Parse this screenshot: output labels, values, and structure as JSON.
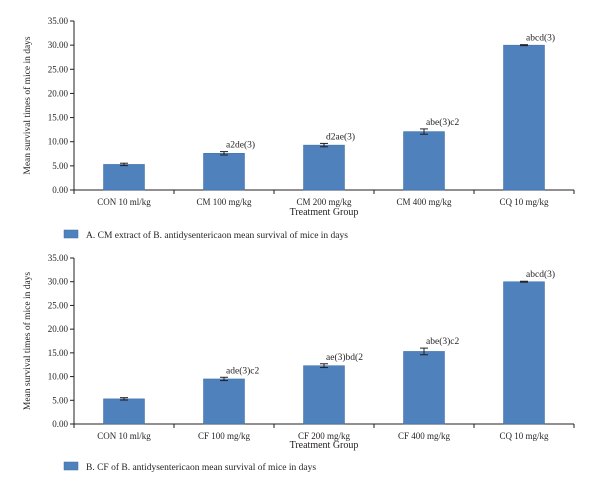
{
  "colors": {
    "bar": "#4f81bd",
    "bar_edge": "#3a6aa3",
    "axis": "#231f20"
  },
  "chart_data": [
    {
      "type": "bar",
      "title": "",
      "ylabel": "Mean survival times of mice in days",
      "xlabel": "Treatment Group",
      "ylim": [
        0,
        35
      ],
      "yticks": [
        "0.00",
        "5.00",
        "10.00",
        "15.00",
        "20.00",
        "25.00",
        "30.00",
        "35.00"
      ],
      "categories": [
        "CON 10 ml/kg",
        "CM 100 mg/kg",
        "CM 200 mg/kg",
        "CM 400 mg/kg",
        "CQ 10 mg/kg"
      ],
      "values": [
        5.3,
        7.6,
        9.3,
        12.1,
        30.0
      ],
      "errors": [
        0.25,
        0.35,
        0.35,
        0.55,
        0.1
      ],
      "data_labels": [
        "",
        "a2de(3)",
        "d2ae(3)",
        "abe(3)c2",
        "abcd(3)"
      ],
      "legend": "A. CM extract of B. antidysentericaon mean survival of mice in days",
      "grid": false
    },
    {
      "type": "bar",
      "title": "",
      "ylabel": "Mean survival times of mice in days",
      "xlabel": "Treatment Group",
      "ylim": [
        0,
        35
      ],
      "yticks": [
        "0.00",
        "5.00",
        "10.00",
        "15.00",
        "20.00",
        "25.00",
        "30.00",
        "35.00"
      ],
      "categories": [
        "CON 10 ml/kg",
        "CF 100 mg/kg",
        "CF 200 mg/kg",
        "CF 400 mg/kg",
        "CQ 10 mg/kg"
      ],
      "values": [
        5.3,
        9.5,
        12.3,
        15.3,
        30.0
      ],
      "errors": [
        0.25,
        0.35,
        0.4,
        0.7,
        0.1
      ],
      "data_labels": [
        "",
        "ade(3)c2",
        "ae(3)bd(2",
        "abe(3)c2",
        "abcd(3)"
      ],
      "legend": "B. CF of B. antidysentericaon mean survival of mice in days",
      "grid": false
    }
  ]
}
